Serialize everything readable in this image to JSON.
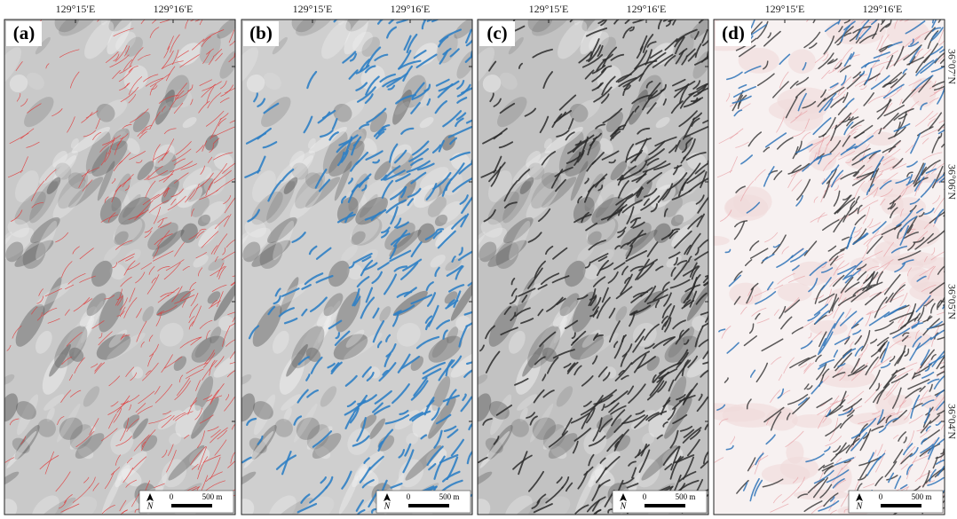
{
  "panels": [
    {
      "label": "(a)"
    },
    {
      "label": "(b)"
    },
    {
      "label": "(c)"
    },
    {
      "label": "(d)"
    }
  ],
  "longitude_labels": [
    "129°15′E",
    "129°16′E"
  ],
  "latitude_labels": [
    "36°07′N",
    "36°06′N",
    "36°05′N",
    "36°04′N"
  ],
  "scale_bar": {
    "start": "0",
    "end": "500 m"
  },
  "north_arrow": "N"
}
